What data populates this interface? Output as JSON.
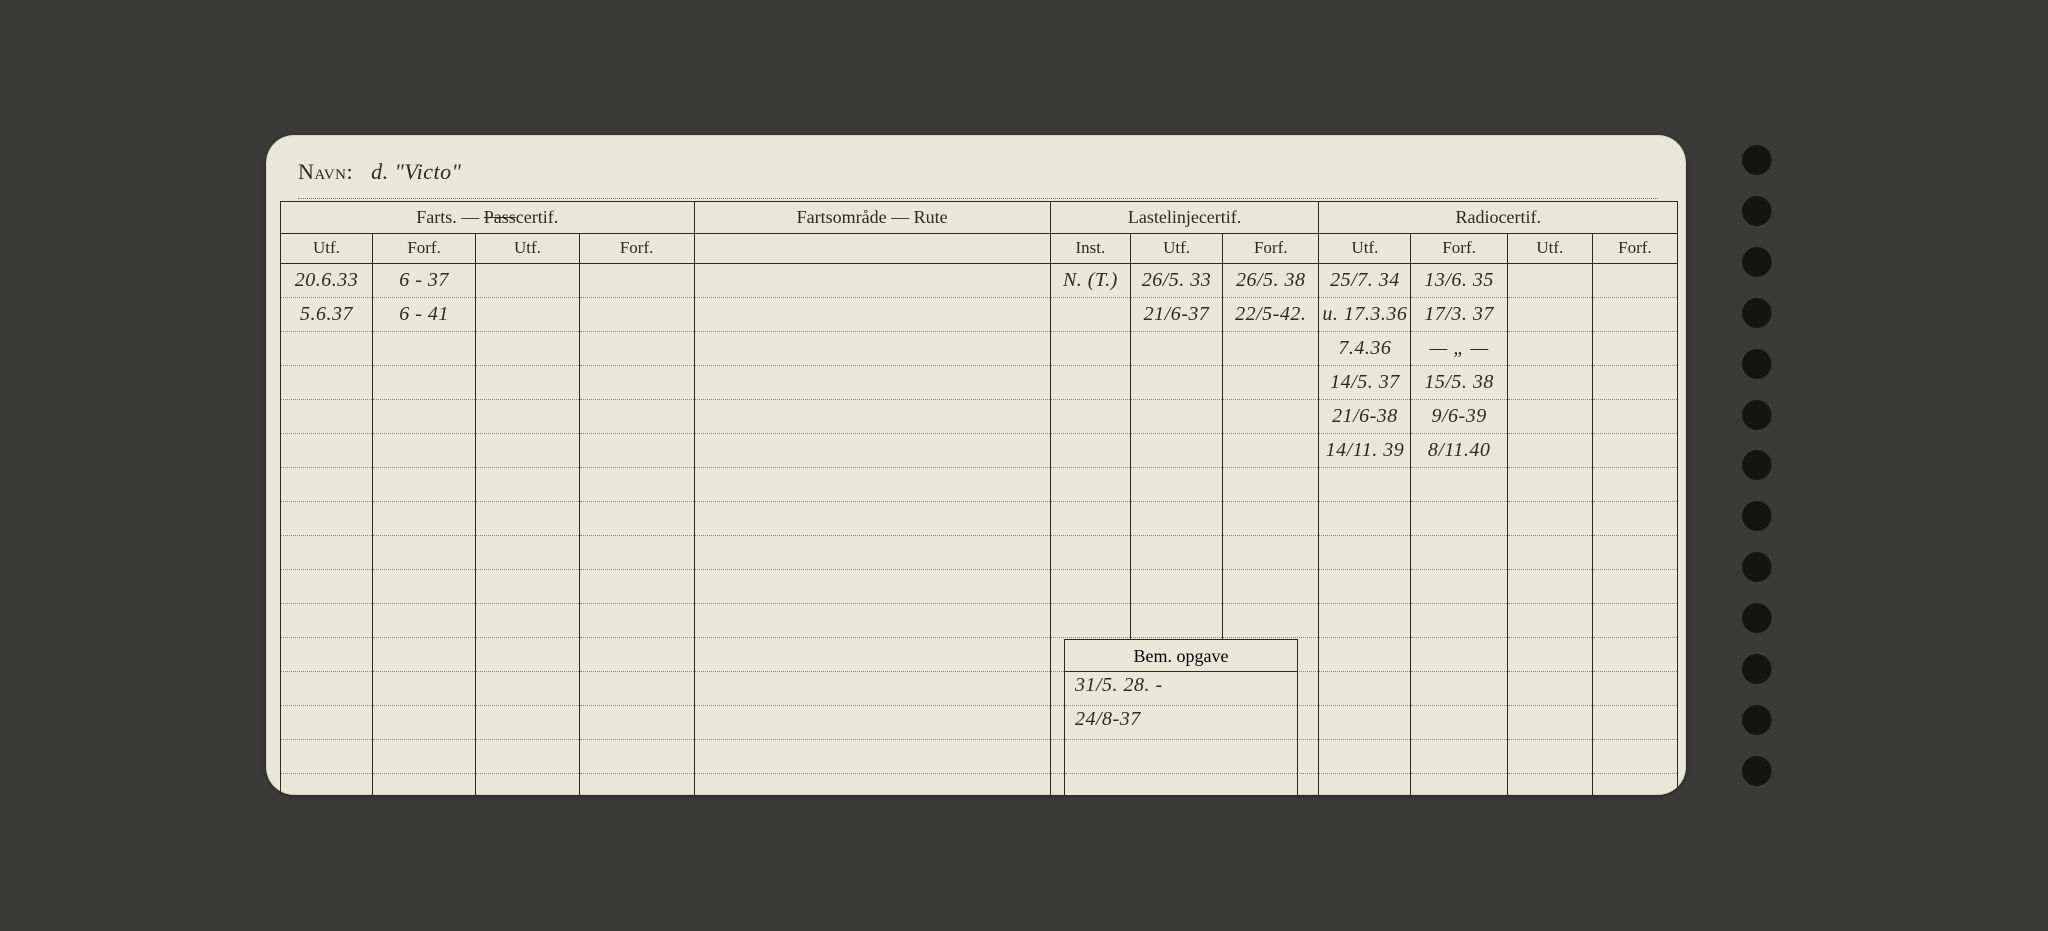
{
  "navn": {
    "label": "Navn:",
    "value": "d. \"Victo\""
  },
  "headers": {
    "farts": "Farts. — Passcertif.",
    "farts_pass_strike": "Pass",
    "rute": "Fartsområde — Rute",
    "laste": "Lastelinjecertif.",
    "radio": "Radiocertif.",
    "utf": "Utf.",
    "forf": "Forf.",
    "inst": "Inst.",
    "bem": "Bem. opgave"
  },
  "colors": {
    "paper": "#e9e8d8",
    "ink": "#2a2a22",
    "dotted": "#8a8a78",
    "bg": "#3a3a36",
    "punch": "#141412"
  },
  "farts": {
    "rows": [
      {
        "utf": "20.6.33",
        "forf": "6 - 37"
      },
      {
        "utf": "5.6.37",
        "forf": "6 - 41"
      }
    ]
  },
  "laste": {
    "rows": [
      {
        "inst": "N. (T.)",
        "utf": "26/5. 33",
        "forf": "26/5. 38"
      },
      {
        "inst": "",
        "utf": "21/6-37",
        "forf": "22/5-42."
      }
    ]
  },
  "radio": {
    "rows": [
      {
        "utf": "25/7. 34",
        "forf": "13/6. 35"
      },
      {
        "utf": "u. 17.3.36",
        "forf": "17/3. 37"
      },
      {
        "utf": "7.4.36",
        "forf": "— „ —"
      },
      {
        "utf": "14/5. 37",
        "forf": "15/5. 38"
      },
      {
        "utf": "21/6-38",
        "forf": "9/6-39"
      },
      {
        "utf": "14/11. 39",
        "forf": "8/11.40"
      }
    ]
  },
  "bem": {
    "rows": [
      "31/5. 28. -",
      "24/8-37"
    ]
  },
  "blank_row_count": 16,
  "punch_count": 13
}
